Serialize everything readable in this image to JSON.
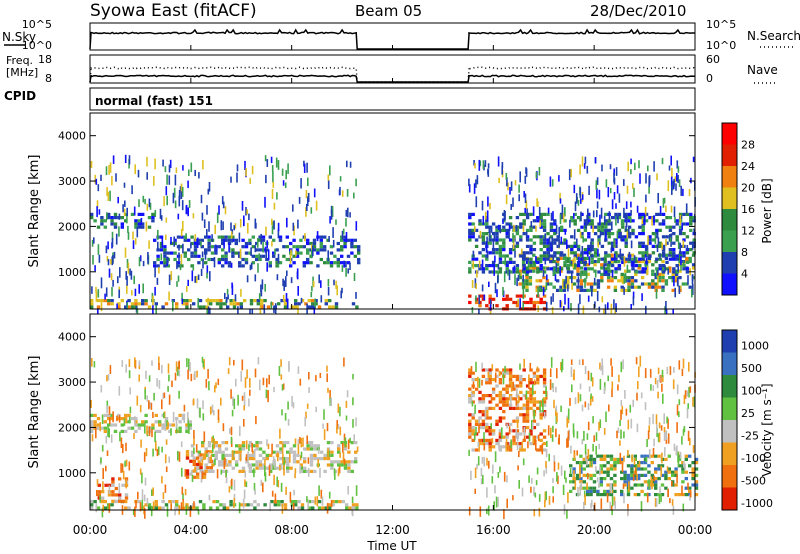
{
  "header": {
    "station": "Syowa East (fitACF)",
    "beam": "Beam 05",
    "date": "28/Dec/2010"
  },
  "top_panels": {
    "nsky_label": "N.Sky",
    "nsky_ticks": [
      "10^5",
      "10^0"
    ],
    "nsearch_label": "N.Search",
    "nsearch_ticks": [
      "10^5",
      "10^0"
    ],
    "freq_label_1": "Freq.",
    "freq_label_2": "[MHz]",
    "freq_ticks": [
      "18",
      "8"
    ],
    "nave_label": "Nave",
    "nave_ticks": [
      "60",
      "0"
    ],
    "cpid_label": "CPID",
    "cpid_text": "normal (fast) 151"
  },
  "x_axis": {
    "ticks": [
      "00:00",
      "04:00",
      "08:00",
      "12:00",
      "16:00",
      "20:00",
      "00:00"
    ],
    "tick_hours": [
      0,
      4,
      8,
      12,
      16,
      20,
      24
    ],
    "label": "Time UT",
    "range": [
      0,
      24
    ],
    "data_gap_hours": [
      10.6,
      15.0
    ]
  },
  "power_panel": {
    "ylabel": "Slant Range [km]",
    "yticks": [
      "1000",
      "2000",
      "3000",
      "4000"
    ],
    "ytick_values": [
      1000,
      2000,
      3000,
      4000
    ],
    "ylim": [
      180,
      4500
    ],
    "colorbar_label": "Power [dB]",
    "colorbar_ticks": [
      "4",
      "8",
      "12",
      "16",
      "20",
      "24",
      "28"
    ],
    "colors": [
      "#1010ff",
      "#1f3fb0",
      "#3aa050",
      "#2e8a3c",
      "#e0c020",
      "#f08010",
      "#e02000",
      "#ff0000"
    ]
  },
  "velocity_panel": {
    "ylabel": "Slant Range [km]",
    "yticks": [
      "1000",
      "2000",
      "3000",
      "4000"
    ],
    "ytick_values": [
      1000,
      2000,
      3000,
      4000
    ],
    "ylim": [
      180,
      4500
    ],
    "colorbar_label": "Velocity [m s⁻¹]",
    "colorbar_ticks": [
      "1000",
      "500",
      "100",
      "25",
      "-25",
      "-100",
      "-500",
      "-1000"
    ],
    "colors": [
      "#1f3fb0",
      "#3a70c0",
      "#2e8a3c",
      "#60c040",
      "#c0c0c0",
      "#f0a020",
      "#f07010",
      "#e02000"
    ]
  },
  "chart_data": [
    {
      "type": "heatmap",
      "title": "Power",
      "xlabel": "Time UT",
      "ylabel": "Slant Range [km]",
      "xlim": [
        0,
        24
      ],
      "ylim": [
        180,
        4500
      ],
      "colorbar": "Power [dB]",
      "features": [
        {
          "x": [
            0,
            2.5
          ],
          "y": [
            2000,
            2300
          ],
          "value_db": 6
        },
        {
          "x": [
            2.5,
            10.6
          ],
          "y": [
            1100,
            1800
          ],
          "value_db": 6
        },
        {
          "x": [
            0,
            10.6
          ],
          "y": [
            200,
            400
          ],
          "value_db": 20
        },
        {
          "x": [
            15,
            18
          ],
          "y": [
            200,
            500
          ],
          "value_db": 26
        },
        {
          "x": [
            17,
            24
          ],
          "y": [
            600,
            1400
          ],
          "value_db": 14
        },
        {
          "x": [
            15,
            24
          ],
          "y": [
            1000,
            2300
          ],
          "value_db": 8
        }
      ]
    },
    {
      "type": "heatmap",
      "title": "Velocity",
      "xlabel": "Time UT",
      "ylabel": "Slant Range [km]",
      "xlim": [
        0,
        24
      ],
      "ylim": [
        180,
        4500
      ],
      "colorbar": "Velocity [m s⁻¹]",
      "features": [
        {
          "x": [
            0,
            4
          ],
          "y": [
            1900,
            2300
          ],
          "value_ms": 0
        },
        {
          "x": [
            4,
            10.6
          ],
          "y": [
            1000,
            1700
          ],
          "value_ms": 0
        },
        {
          "x": [
            0,
            10.6
          ],
          "y": [
            200,
            400
          ],
          "value_ms": 60
        },
        {
          "x": [
            0.3,
            1.5
          ],
          "y": [
            400,
            900
          ],
          "value_ms": -150
        },
        {
          "x": [
            3.8,
            4.8
          ],
          "y": [
            900,
            1500
          ],
          "value_ms": -200
        },
        {
          "x": [
            15,
            18
          ],
          "y": [
            1500,
            3300
          ],
          "value_ms": -200
        },
        {
          "x": [
            19,
            24
          ],
          "y": [
            500,
            1400
          ],
          "value_ms": 150
        }
      ]
    }
  ]
}
